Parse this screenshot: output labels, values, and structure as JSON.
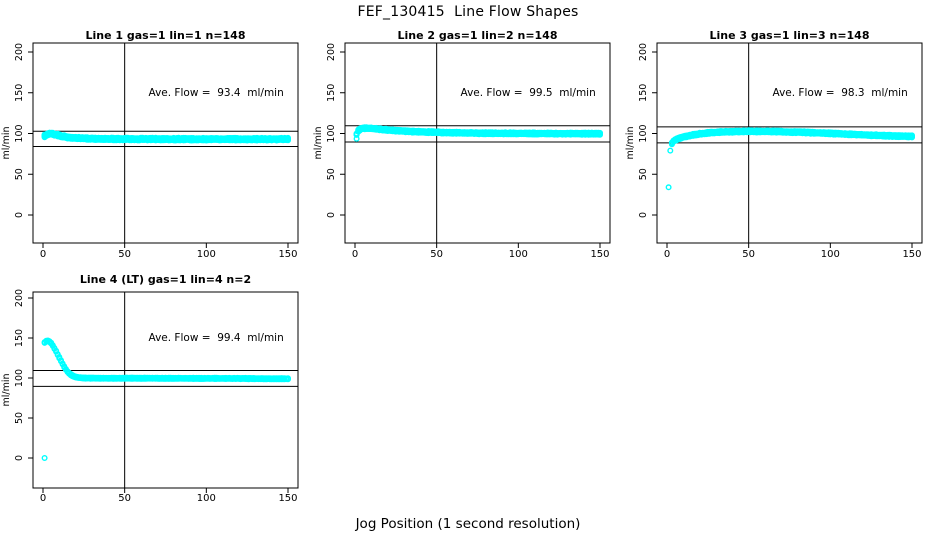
{
  "page": {
    "main_title": "FEF_130415  Line Flow Shapes",
    "x_axis_label": "Jog Position (1 second resolution)",
    "colors": {
      "point": "#00FFFF",
      "axis": "#000000",
      "background": "#FFFFFF"
    }
  },
  "chart_data": [
    {
      "type": "scatter",
      "title": "Line 1 gas=1 lin=1 n=148",
      "annotation": "Ave. Flow =  93.4  ml/min",
      "ave_flow_ml_min": 93.4,
      "n_jogs": 148,
      "ylabel": "ml/min",
      "x_ticks": [
        0,
        50,
        100,
        150
      ],
      "y_ticks": [
        0,
        50,
        100,
        150,
        200
      ],
      "xlim": [
        0,
        150
      ],
      "ylim": [
        0,
        200
      ],
      "hlines": [
        102.7,
        84.1
      ],
      "vline": 50,
      "marker": "open-circle",
      "band_halfwidth": 1.5,
      "curve": [
        [
          1,
          97.5
        ],
        [
          2,
          98.5
        ],
        [
          3,
          99.5
        ],
        [
          4,
          100
        ],
        [
          5,
          100
        ],
        [
          6,
          99.5
        ],
        [
          8,
          98.5
        ],
        [
          10,
          97.5
        ],
        [
          12,
          96.5
        ],
        [
          15,
          95.5
        ],
        [
          18,
          94.8
        ],
        [
          22,
          94.2
        ],
        [
          27,
          93.8
        ],
        [
          35,
          93.4
        ],
        [
          50,
          93.2
        ],
        [
          70,
          93.1
        ],
        [
          100,
          93
        ],
        [
          150,
          93
        ]
      ],
      "outliers": [
        [
          1,
          95.5
        ]
      ]
    },
    {
      "type": "scatter",
      "title": "Line 2 gas=1 lin=2 n=148",
      "annotation": "Ave. Flow =  99.5  ml/min",
      "ave_flow_ml_min": 99.5,
      "n_jogs": 148,
      "ylabel": "ml/min",
      "x_ticks": [
        0,
        50,
        100,
        150
      ],
      "y_ticks": [
        0,
        50,
        100,
        150,
        200
      ],
      "xlim": [
        0,
        150
      ],
      "ylim": [
        0,
        200
      ],
      "hlines": [
        109.5,
        89.6
      ],
      "vline": 50,
      "marker": "open-circle",
      "band_halfwidth": 1.2,
      "curve": [
        [
          1,
          99
        ],
        [
          2,
          103.5
        ],
        [
          3,
          105
        ],
        [
          4,
          106
        ],
        [
          6,
          106.5
        ],
        [
          9,
          106.3
        ],
        [
          12,
          105.8
        ],
        [
          15,
          105.2
        ],
        [
          20,
          104.3
        ],
        [
          26,
          103.4
        ],
        [
          33,
          102.6
        ],
        [
          42,
          101.9
        ],
        [
          55,
          101.2
        ],
        [
          70,
          100.6
        ],
        [
          90,
          100.2
        ],
        [
          120,
          99.9
        ],
        [
          150,
          99.8
        ]
      ],
      "outliers": [
        [
          1,
          93.5
        ]
      ]
    },
    {
      "type": "scatter",
      "title": "Line 3 gas=1 lin=3 n=148",
      "annotation": "Ave. Flow =  98.3  ml/min",
      "ave_flow_ml_min": 98.3,
      "n_jogs": 148,
      "ylabel": "ml/min",
      "x_ticks": [
        0,
        50,
        100,
        150
      ],
      "y_ticks": [
        0,
        50,
        100,
        150,
        200
      ],
      "xlim": [
        0,
        150
      ],
      "ylim": [
        0,
        200
      ],
      "hlines": [
        108.1,
        88.5
      ],
      "vline": 50,
      "marker": "open-circle",
      "band_halfwidth": 1.2,
      "curve": [
        [
          3,
          88
        ],
        [
          4,
          90.5
        ],
        [
          5,
          92
        ],
        [
          6,
          93
        ],
        [
          8,
          94.5
        ],
        [
          10,
          95.8
        ],
        [
          13,
          97
        ],
        [
          16,
          98.2
        ],
        [
          20,
          99.5
        ],
        [
          25,
          100.7
        ],
        [
          30,
          101.5
        ],
        [
          38,
          102.2
        ],
        [
          50,
          102.6
        ],
        [
          65,
          102.4
        ],
        [
          80,
          101.6
        ],
        [
          95,
          100.6
        ],
        [
          110,
          99.2
        ],
        [
          125,
          97.9
        ],
        [
          140,
          96.9
        ],
        [
          150,
          96.4
        ]
      ],
      "outliers": [
        [
          1,
          34
        ],
        [
          2,
          79
        ]
      ]
    },
    {
      "type": "scatter",
      "title": "Line 4 (LT) gas=1 lin=4 n=2",
      "annotation": "Ave. Flow =  99.4  ml/min",
      "ave_flow_ml_min": 99.4,
      "n_jogs": 2,
      "ylabel": "ml/min",
      "x_ticks": [
        0,
        50,
        100,
        150
      ],
      "y_ticks": [
        0,
        50,
        100,
        150,
        200
      ],
      "xlim": [
        0,
        150
      ],
      "ylim": [
        0,
        200
      ],
      "hlines": [
        109.3,
        89.5
      ],
      "vline": 50,
      "marker": "open-circle",
      "band_halfwidth": 0.7,
      "curve": [
        [
          1,
          144.5
        ],
        [
          2,
          146
        ],
        [
          3,
          146.5
        ],
        [
          4,
          145.5
        ],
        [
          5,
          143.5
        ],
        [
          6,
          140.5
        ],
        [
          7,
          137
        ],
        [
          8,
          133.5
        ],
        [
          9,
          129.5
        ],
        [
          10,
          125.5
        ],
        [
          11,
          121.5
        ],
        [
          12,
          117.5
        ],
        [
          13,
          114
        ],
        [
          14,
          110.8
        ],
        [
          15,
          108
        ],
        [
          16,
          105.8
        ],
        [
          17,
          104.2
        ],
        [
          18,
          103
        ],
        [
          19,
          102
        ],
        [
          20,
          101.3
        ],
        [
          22,
          100.5
        ],
        [
          25,
          100
        ],
        [
          30,
          99.8
        ],
        [
          40,
          99.7
        ],
        [
          60,
          99.7
        ],
        [
          80,
          99.6
        ],
        [
          100,
          99.5
        ],
        [
          120,
          99.4
        ],
        [
          150,
          99
        ]
      ],
      "outliers": [
        [
          1,
          0
        ]
      ]
    }
  ]
}
